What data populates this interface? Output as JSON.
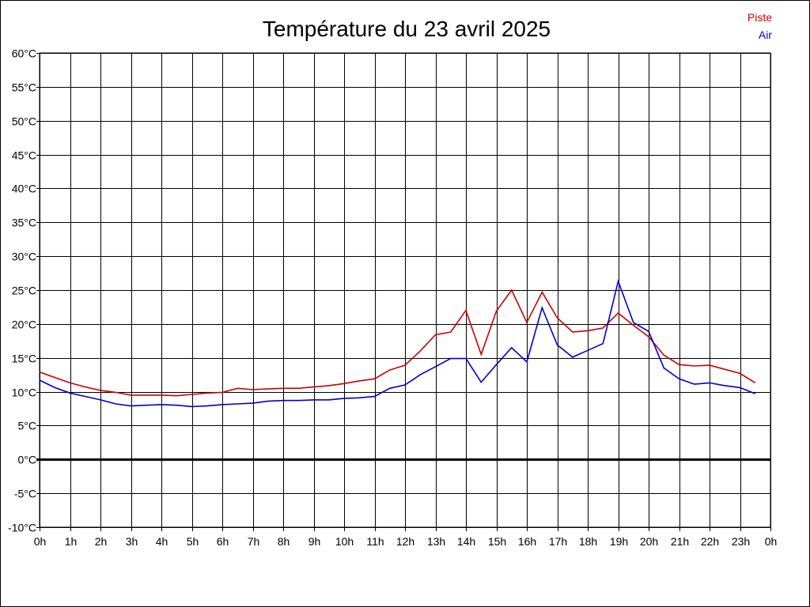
{
  "chart_data": {
    "type": "line",
    "title": "Température du 23 avril 2025",
    "xlabel": "",
    "ylabel": "",
    "x_tick_labels": [
      "0h",
      "1h",
      "2h",
      "3h",
      "4h",
      "5h",
      "6h",
      "7h",
      "8h",
      "9h",
      "10h",
      "11h",
      "12h",
      "13h",
      "14h",
      "15h",
      "16h",
      "17h",
      "18h",
      "19h",
      "20h",
      "21h",
      "22h",
      "23h",
      "0h"
    ],
    "y_tick_labels": [
      "-10°C",
      "-5°C",
      "0°C",
      "5°C",
      "10°C",
      "15°C",
      "20°C",
      "25°C",
      "30°C",
      "35°C",
      "40°C",
      "45°C",
      "50°C",
      "55°C",
      "60°C"
    ],
    "xlim": [
      0,
      24
    ],
    "ylim": [
      -10,
      60
    ],
    "grid": true,
    "legend_position": "top-right",
    "x": [
      0,
      0.5,
      1,
      1.5,
      2,
      2.5,
      3,
      3.5,
      4,
      4.5,
      5,
      5.5,
      6,
      6.5,
      7,
      7.5,
      8,
      8.5,
      9,
      9.5,
      10,
      10.5,
      11,
      11.5,
      12,
      12.5,
      13,
      13.5,
      14,
      14.5,
      15,
      15.5,
      16,
      16.5,
      17,
      17.5,
      18,
      18.5,
      19,
      19.5,
      20,
      20.5,
      21,
      21.5,
      22,
      22.5,
      23,
      23.5
    ],
    "series": [
      {
        "name": "Piste",
        "color": "#cc0000",
        "values": [
          12.9,
          12.1,
          11.3,
          10.7,
          10.2,
          9.9,
          9.5,
          9.5,
          9.5,
          9.4,
          9.6,
          9.8,
          9.9,
          10.5,
          10.3,
          10.4,
          10.5,
          10.5,
          10.7,
          10.9,
          11.2,
          11.6,
          11.9,
          13.2,
          13.9,
          16.0,
          18.4,
          18.8,
          22.0,
          15.5,
          21.9,
          25.0,
          20.2,
          24.7,
          20.9,
          18.8,
          19.0,
          19.4,
          21.6,
          19.8,
          18.1,
          15.4,
          14.0,
          13.8,
          13.9,
          13.3,
          12.7,
          11.3
        ]
      },
      {
        "name": "Air",
        "color": "#0000cc",
        "values": [
          11.7,
          10.6,
          9.8,
          9.3,
          8.8,
          8.2,
          7.9,
          8.0,
          8.1,
          8.0,
          7.8,
          7.9,
          8.1,
          8.2,
          8.3,
          8.6,
          8.7,
          8.7,
          8.8,
          8.8,
          9.0,
          9.1,
          9.3,
          10.5,
          11.0,
          12.5,
          13.7,
          14.9,
          14.9,
          11.4,
          14.0,
          16.5,
          14.4,
          22.4,
          16.9,
          15.1,
          16.1,
          17.1,
          26.3,
          20.2,
          18.9,
          13.5,
          11.9,
          11.1,
          11.3,
          10.9,
          10.6,
          9.7
        ]
      }
    ]
  }
}
